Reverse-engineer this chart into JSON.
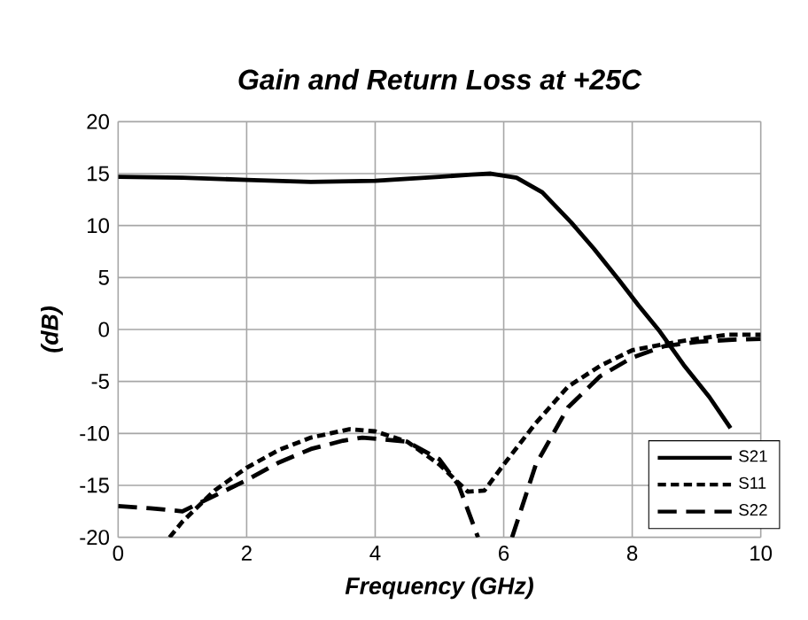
{
  "chart_data": {
    "type": "line",
    "title": "Gain and Return Loss at +25C",
    "xlabel": "Frequency (GHz)",
    "ylabel": "(dB)",
    "xlim": [
      0,
      10
    ],
    "ylim": [
      -20,
      20
    ],
    "xticks": [
      0,
      2,
      4,
      6,
      8,
      10
    ],
    "yticks": [
      -20,
      -15,
      -10,
      -5,
      0,
      5,
      10,
      15,
      20
    ],
    "grid": true,
    "legend": "bottom right",
    "series": [
      {
        "name": "S21",
        "color": "#000000",
        "line_style": "solid",
        "x": [
          0,
          1,
          2,
          3,
          4,
          5,
          5.5,
          5.8,
          6.2,
          6.6,
          7.05,
          7.4,
          7.8,
          8.1,
          8.43,
          8.8,
          9.2,
          9.53
        ],
        "values": [
          14.7,
          14.6,
          14.4,
          14.2,
          14.3,
          14.7,
          14.9,
          15.0,
          14.6,
          13.2,
          10.3,
          7.8,
          4.7,
          2.3,
          -0.2,
          -3.4,
          -6.5,
          -9.5
        ]
      },
      {
        "name": "S11",
        "color": "#000000",
        "line_style": "dotted",
        "x": [
          0.8,
          1,
          1.5,
          2,
          2.5,
          3,
          3.6,
          4,
          4.5,
          5,
          5.44,
          5.7,
          6,
          6.5,
          7,
          7.5,
          8,
          8.5,
          9,
          9.5,
          10
        ],
        "values": [
          -20,
          -18.5,
          -15.5,
          -13.3,
          -11.6,
          -10.4,
          -9.6,
          -9.8,
          -10.8,
          -13,
          -15.6,
          -15.5,
          -13,
          -9,
          -5.5,
          -3.5,
          -2,
          -1.4,
          -0.9,
          -0.5,
          -0.5
        ]
      },
      {
        "name": "S22",
        "color": "#000000",
        "line_style": "dashed",
        "x": [
          0,
          0.5,
          1,
          1.5,
          2,
          2.5,
          3,
          3.5,
          3.8,
          4.5,
          5,
          5.3,
          5.6,
          5.85,
          6.13,
          6.5,
          7,
          7.5,
          8,
          8.5,
          9,
          9.5,
          10
        ],
        "values": [
          -17,
          -17.2,
          -17.5,
          -16,
          -14.5,
          -12.8,
          -11.5,
          -10.7,
          -10.4,
          -10.8,
          -12.5,
          -15,
          -20,
          null,
          -20,
          -13,
          -7.5,
          -4.5,
          -2.7,
          -1.6,
          -1.2,
          -1.0,
          -0.9
        ]
      }
    ]
  }
}
